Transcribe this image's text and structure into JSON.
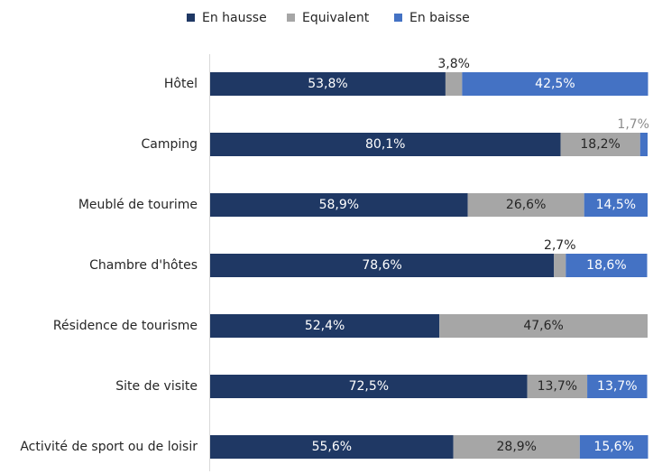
{
  "chart_data": {
    "type": "stacked-bar-horizontal",
    "categories": [
      "Hôtel",
      "Camping",
      "Meublé de tourime",
      "Chambre d'hôtes",
      "Résidence de tourisme",
      "Site de visite",
      "Activité de sport ou de loisir"
    ],
    "series": [
      {
        "name": "En hausse",
        "color": "#1f3864",
        "values": [
          53.8,
          80.1,
          58.9,
          78.6,
          52.4,
          72.5,
          55.6
        ],
        "value_labels": [
          "53,8%",
          "80,1%",
          "58,9%",
          "78,6%",
          "52,4%",
          "72,5%",
          "55,6%"
        ]
      },
      {
        "name": "Equivalent",
        "color": "#a6a6a6",
        "values": [
          3.8,
          18.2,
          26.6,
          2.7,
          47.6,
          13.7,
          28.9
        ],
        "value_labels": [
          "3,8%",
          "18,2%",
          "26,6%",
          "2,7%",
          "47,6%",
          "13,7%",
          "28,9%"
        ]
      },
      {
        "name": "En baisse",
        "color": "#4472c4",
        "values": [
          42.5,
          1.7,
          14.5,
          18.6,
          0,
          13.7,
          15.6
        ],
        "value_labels": [
          "42,5%",
          "1,7%",
          "14,5%",
          "18,6%",
          null,
          "13,7%",
          "15,6%"
        ]
      }
    ],
    "xlim": [
      0,
      100
    ],
    "legend": "top"
  }
}
